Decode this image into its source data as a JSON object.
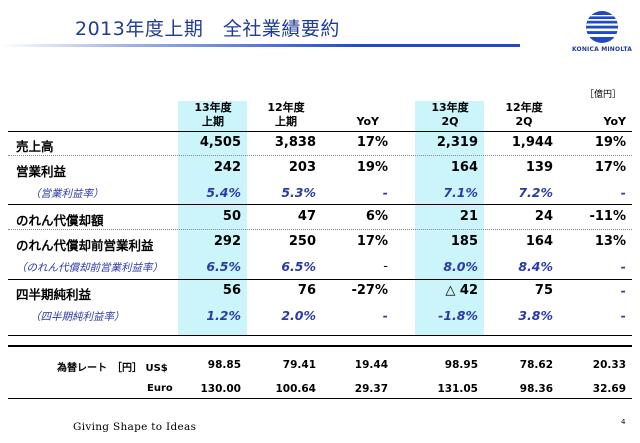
{
  "title": "2013年度上期　全社業績要約",
  "logo": {
    "brand": "KONICA MINOLTA"
  },
  "unit": "［億円］",
  "columns": {
    "fy13h1": {
      "line1": "13年度",
      "line2": "上期"
    },
    "fy12h1": {
      "line1": "12年度",
      "line2": "上期"
    },
    "yoy1": "YoY",
    "fy13q2": {
      "line1": "13年度",
      "line2": "2Q"
    },
    "fy12q2": {
      "line1": "12年度",
      "line2": "2Q"
    },
    "yoy2": "YoY"
  },
  "rows": [
    {
      "label": "売上高",
      "values": [
        "4,505",
        "3,838",
        "17%",
        "2,319",
        "1,944",
        "19%"
      ]
    },
    {
      "label": "営業利益",
      "values": [
        "242",
        "203",
        "19%",
        "164",
        "139",
        "17%"
      ]
    },
    {
      "label": "（営業利益率）",
      "values": [
        "5.4%",
        "5.3%",
        "-",
        "7.1%",
        "7.2%",
        "-"
      ]
    },
    {
      "label": "のれん代償却額",
      "values": [
        "50",
        "47",
        "6%",
        "21",
        "24",
        "-11%"
      ]
    },
    {
      "label": "のれん代償却前営業利益",
      "values": [
        "292",
        "250",
        "17%",
        "185",
        "164",
        "13%"
      ]
    },
    {
      "label": "（のれん代償却前営業利益率）",
      "values": [
        "6.5%",
        "6.5%",
        "-",
        "8.0%",
        "8.4%",
        "-"
      ]
    },
    {
      "label": "四半期純利益",
      "values": [
        "56",
        "76",
        "-27%",
        "△ 42",
        "75",
        "-"
      ]
    },
    {
      "label": "（四半期純利益率）",
      "values": [
        "1.2%",
        "2.0%",
        "-",
        "-1.8%",
        "3.8%",
        "-"
      ]
    }
  ],
  "fx": [
    {
      "label": "為替レート　［円］ US$",
      "values": [
        "98.85",
        "79.41",
        "19.44",
        "98.95",
        "78.62",
        "20.33"
      ]
    },
    {
      "label": "Euro",
      "values": [
        "130.00",
        "100.64",
        "29.37",
        "131.05",
        "98.36",
        "32.69"
      ]
    }
  ],
  "footer": "Giving Shape to Ideas",
  "page_number": "4"
}
